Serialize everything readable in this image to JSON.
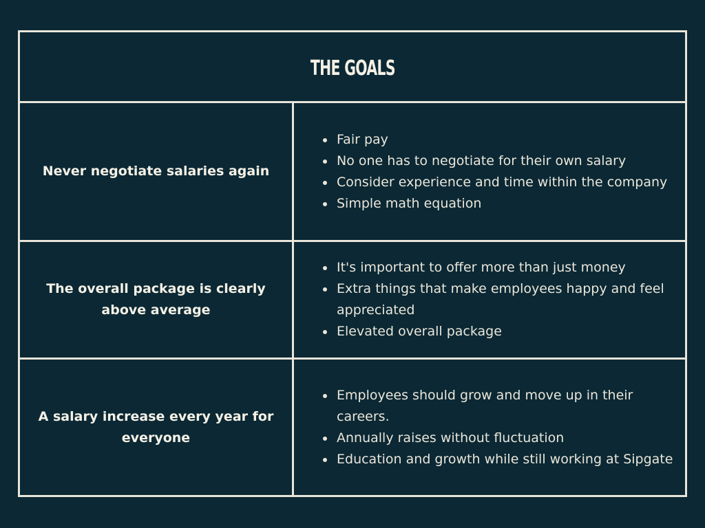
{
  "title": "THE GOALS",
  "rows": [
    {
      "goal": "Never negotiate salaries again",
      "details": [
        "Fair pay",
        "No one has to negotiate for their own salary",
        "Consider experience and time within the company",
        "Simple math equation"
      ]
    },
    {
      "goal": "The overall package is clearly above average",
      "details": [
        "It's important to offer more than just money",
        "Extra things that make employees happy and feel appreciated",
        "Elevated overall package"
      ]
    },
    {
      "goal": "A salary increase every year for everyone",
      "details": [
        "Employees should grow and move up in their careers.",
        "Annually raises without fluctuation",
        "Education and growth  while still working at Sipgate"
      ]
    }
  ],
  "colors": {
    "background": "#0b2834",
    "border": "#e9e5da",
    "text": "#f3efe4"
  }
}
